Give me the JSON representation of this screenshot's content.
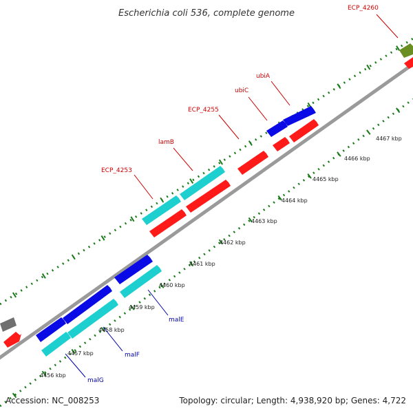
{
  "title": "Escherichia coli 536, complete genome",
  "footer": {
    "accession": "Accession: NC_008253",
    "summary": "Topology: circular; Length: 4,938,920 bp; Genes: 4,722"
  },
  "colors": {
    "axis": "#808080",
    "tick": "#1a7a1a",
    "red": "#ff1a1a",
    "blue": "#0a0ae6",
    "cyan": "#1ecfd0",
    "gray": "#707070",
    "olive": "#6b8e23",
    "label_red": "#cc0000",
    "label_blue": "#0000aa"
  },
  "ticks": [
    {
      "label": "4456 kbp"
    },
    {
      "label": "4457 kbp"
    },
    {
      "label": "4458 kbp"
    },
    {
      "label": "4459 kbp"
    },
    {
      "label": "4460 kbp"
    },
    {
      "label": "4461 kbp"
    },
    {
      "label": "4462 kbp"
    },
    {
      "label": "4463 kbp"
    },
    {
      "label": "4464 kbp"
    },
    {
      "label": "4465 kbp"
    },
    {
      "label": "4466 kbp"
    },
    {
      "label": "4467 kbp"
    }
  ],
  "genes": [
    {
      "name": "ECP_4253",
      "color": "cyan",
      "track": "forward-2",
      "label_color": "red"
    },
    {
      "name": "lamB",
      "color": "cyan",
      "track": "forward-2",
      "label_color": "red"
    },
    {
      "name": "ECP_4255",
      "color": "red",
      "track": "forward-1",
      "label_color": "red"
    },
    {
      "name": "ubiC",
      "color": "blue",
      "track": "forward-2",
      "label_color": "red"
    },
    {
      "name": "ubiA",
      "color": "blue",
      "track": "forward-2",
      "label_color": "red"
    },
    {
      "name": "ECP_4260",
      "color": "olive",
      "track": "forward-2",
      "label_color": "red"
    },
    {
      "name": "malE",
      "color": "cyan",
      "track": "reverse-1",
      "label_color": "blue"
    },
    {
      "name": "malF",
      "color": "cyan",
      "track": "reverse-1",
      "label_color": "blue"
    },
    {
      "name": "malG",
      "color": "cyan",
      "track": "reverse-1",
      "label_color": "blue"
    }
  ]
}
